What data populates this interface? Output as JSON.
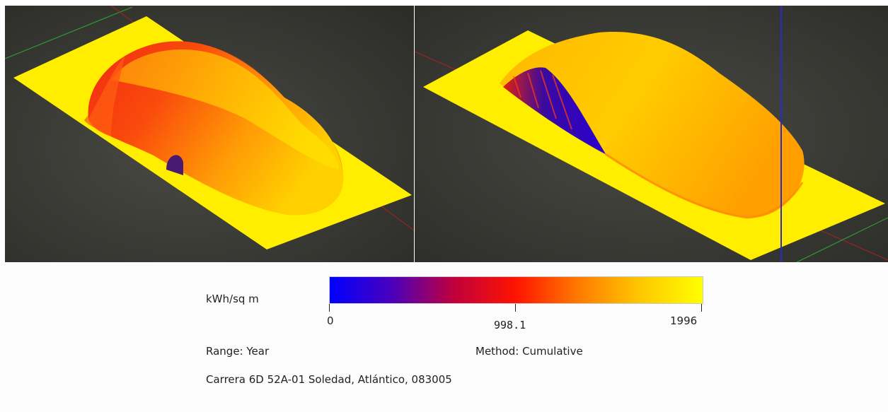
{
  "legend": {
    "unit_label": "kWh/sq m",
    "ramp_colors": [
      "#0000ff",
      "#4a00bc",
      "#c0003c",
      "#ff1400",
      "#ff7a00",
      "#ffc800",
      "#ffff00"
    ],
    "min_label": "0",
    "mid_label": "998.1",
    "max_label": "1996",
    "range_label": "Range: Year",
    "method_label": "Method: Cumulative",
    "address": "Carrera 6D 52A-01 Soledad, Atlántico, 083005"
  }
}
